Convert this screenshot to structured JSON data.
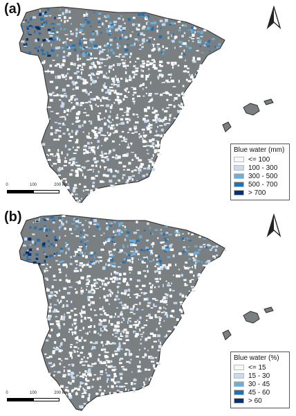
{
  "panels": [
    {
      "label": "(a)",
      "legend": {
        "title": "Blue water (mm)",
        "items": [
          {
            "label": "<= 100",
            "color": "#f4f8fc"
          },
          {
            "label": "100 - 300",
            "color": "#c6dbef"
          },
          {
            "label": "300 - 500",
            "color": "#6baed6"
          },
          {
            "label": "500 - 700",
            "color": "#2171b5"
          },
          {
            "label": "> 700",
            "color": "#08306b"
          }
        ]
      },
      "scale": {
        "ticks": [
          "0",
          "100",
          "200 km"
        ]
      },
      "north_arrow": "north-arrow-icon"
    },
    {
      "label": "(b)",
      "legend": {
        "title": "Blue water (%)",
        "items": [
          {
            "label": "<= 15",
            "color": "#f4f8fc"
          },
          {
            "label": "15 - 30",
            "color": "#c6dbef"
          },
          {
            "label": "30 - 45",
            "color": "#6baed6"
          },
          {
            "label": "45 - 60",
            "color": "#2171b5"
          },
          {
            "label": "> 60",
            "color": "#08306b"
          }
        ]
      },
      "scale": {
        "ticks": [
          "0",
          "100",
          "200 km"
        ]
      },
      "north_arrow": "north-arrow-icon"
    }
  ],
  "colors": {
    "land": "#7a7f82",
    "outline": "#2a2a2a",
    "no_data": "#ffffff"
  }
}
